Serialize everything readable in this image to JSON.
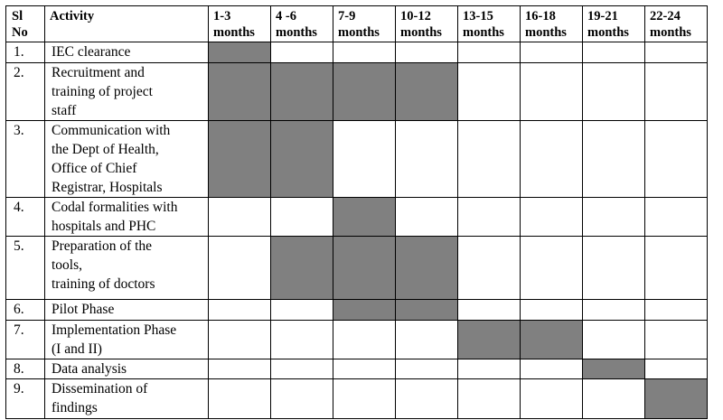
{
  "table": {
    "headers": {
      "sl": [
        "Sl",
        "No"
      ],
      "activity": "Activity",
      "periods": [
        [
          "1-3",
          "months"
        ],
        [
          "4 -6",
          "months"
        ],
        [
          "7-9",
          "months"
        ],
        [
          "10-12",
          "months"
        ],
        [
          "13-15",
          "months"
        ],
        [
          "16-18",
          "months"
        ],
        [
          "19-21",
          "months"
        ],
        [
          "22-24",
          "months"
        ]
      ]
    },
    "rows": [
      {
        "sl": "1.",
        "activity": [
          "IEC clearance"
        ],
        "filled": [
          1,
          0,
          0,
          0,
          0,
          0,
          0,
          0
        ]
      },
      {
        "sl": "2.",
        "activity": [
          "Recruitment and",
          "training of project",
          "staff"
        ],
        "filled": [
          1,
          1,
          1,
          1,
          0,
          0,
          0,
          0
        ]
      },
      {
        "sl": "3.",
        "activity": [
          "Communication with",
          "the Dept of Health,",
          "Office of Chief",
          "Registrar, Hospitals"
        ],
        "filled": [
          1,
          1,
          0,
          0,
          0,
          0,
          0,
          0
        ]
      },
      {
        "sl": "4.",
        "activity": [
          "Codal formalities with",
          "hospitals and PHC"
        ],
        "filled": [
          0,
          0,
          1,
          0,
          0,
          0,
          0,
          0
        ]
      },
      {
        "sl": "5.",
        "activity": [
          "Preparation of the",
          "tools,",
          "training of doctors"
        ],
        "filled": [
          0,
          1,
          1,
          1,
          0,
          0,
          0,
          0
        ]
      },
      {
        "sl": "6.",
        "activity": [
          "Pilot Phase"
        ],
        "filled": [
          0,
          0,
          1,
          1,
          0,
          0,
          0,
          0
        ]
      },
      {
        "sl": "7.",
        "activity": [
          "Implementation Phase",
          "(I and II)"
        ],
        "filled": [
          0,
          0,
          0,
          0,
          1,
          1,
          0,
          0
        ]
      },
      {
        "sl": "8.",
        "activity": [
          "Data analysis"
        ],
        "filled": [
          0,
          0,
          0,
          0,
          0,
          0,
          1,
          0
        ]
      },
      {
        "sl": "9.",
        "activity": [
          "Dissemination of",
          "findings"
        ],
        "filled": [
          0,
          0,
          0,
          0,
          0,
          0,
          0,
          1
        ]
      }
    ],
    "colors": {
      "filled": "#808080",
      "empty": "#ffffff",
      "border": "#000000"
    }
  }
}
